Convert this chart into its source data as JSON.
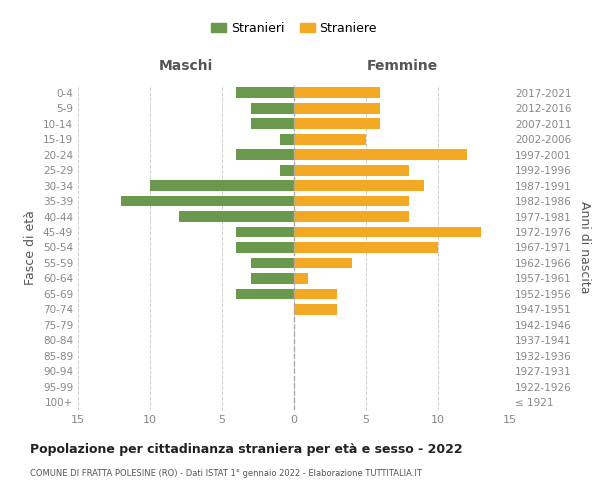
{
  "age_groups": [
    "100+",
    "95-99",
    "90-94",
    "85-89",
    "80-84",
    "75-79",
    "70-74",
    "65-69",
    "60-64",
    "55-59",
    "50-54",
    "45-49",
    "40-44",
    "35-39",
    "30-34",
    "25-29",
    "20-24",
    "15-19",
    "10-14",
    "5-9",
    "0-4"
  ],
  "birth_years": [
    "≤ 1921",
    "1922-1926",
    "1927-1931",
    "1932-1936",
    "1937-1941",
    "1942-1946",
    "1947-1951",
    "1952-1956",
    "1957-1961",
    "1962-1966",
    "1967-1971",
    "1972-1976",
    "1977-1981",
    "1982-1986",
    "1987-1991",
    "1992-1996",
    "1997-2001",
    "2002-2006",
    "2007-2011",
    "2012-2016",
    "2017-2021"
  ],
  "males": [
    0,
    0,
    0,
    0,
    0,
    0,
    0,
    4,
    3,
    3,
    4,
    4,
    8,
    12,
    10,
    1,
    4,
    1,
    3,
    3,
    4
  ],
  "females": [
    0,
    0,
    0,
    0,
    0,
    0,
    3,
    3,
    1,
    4,
    10,
    13,
    8,
    8,
    9,
    8,
    12,
    5,
    6,
    6,
    6
  ],
  "male_color": "#6a994e",
  "female_color": "#f4a925",
  "title": "Popolazione per cittadinanza straniera per età e sesso - 2022",
  "subtitle": "COMUNE DI FRATTA POLESINE (RO) - Dati ISTAT 1° gennaio 2022 - Elaborazione TUTTITALIA.IT",
  "ylabel_left": "Fasce di età",
  "ylabel_right": "Anni di nascita",
  "xlabel_maschi": "Maschi",
  "xlabel_femmine": "Femmine",
  "legend_males": "Stranieri",
  "legend_females": "Straniere",
  "xlim": 15,
  "background_color": "#ffffff",
  "grid_color": "#cccccc",
  "axis_label_color": "#555555",
  "tick_color": "#888888"
}
